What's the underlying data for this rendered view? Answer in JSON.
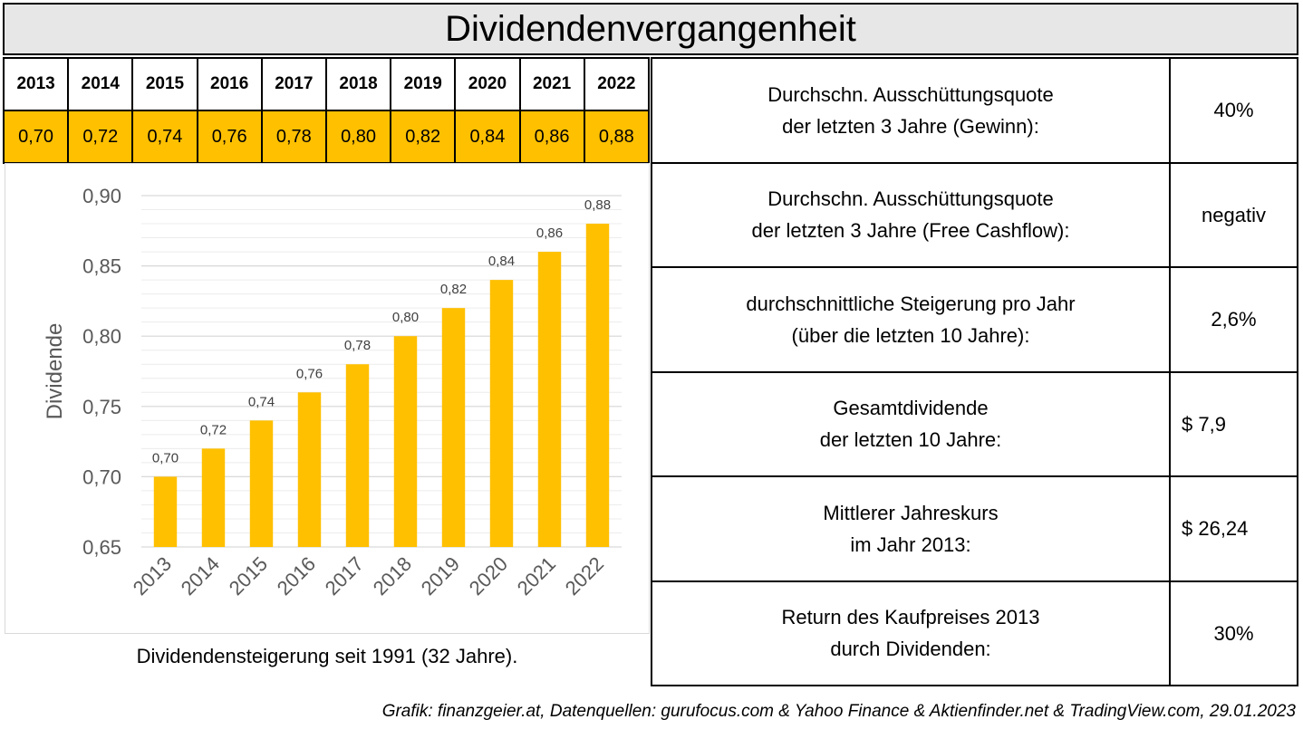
{
  "title": "Dividendenvergangenheit",
  "table": {
    "years": [
      "2013",
      "2014",
      "2015",
      "2016",
      "2017",
      "2018",
      "2019",
      "2020",
      "2021",
      "2022"
    ],
    "values": [
      "0,70",
      "0,72",
      "0,74",
      "0,76",
      "0,78",
      "0,80",
      "0,82",
      "0,84",
      "0,86",
      "0,88"
    ]
  },
  "chart_data": {
    "type": "bar",
    "categories": [
      "2013",
      "2014",
      "2015",
      "2016",
      "2017",
      "2018",
      "2019",
      "2020",
      "2021",
      "2022"
    ],
    "values": [
      0.7,
      0.72,
      0.74,
      0.76,
      0.78,
      0.8,
      0.82,
      0.84,
      0.86,
      0.88
    ],
    "data_labels": [
      "0,70",
      "0,72",
      "0,74",
      "0,76",
      "0,78",
      "0,80",
      "0,82",
      "0,84",
      "0,86",
      "0,88"
    ],
    "ylabel": "Dividende",
    "ylim": [
      0.65,
      0.9
    ],
    "yticks": [
      0.65,
      0.7,
      0.75,
      0.8,
      0.85,
      0.9
    ],
    "ytick_labels": [
      "0,65",
      "0,70",
      "0,75",
      "0,80",
      "0,85",
      "0,90"
    ],
    "grid": true,
    "bar_color": "#ffc000"
  },
  "caption": "Dividendensteigerung seit 1991 (32 Jahre).",
  "metrics": [
    {
      "label_line1": "Durchschn. Ausschüttungsquote",
      "label_line2": "der letzten 3 Jahre (Gewinn):",
      "value": "40%"
    },
    {
      "label_line1": "Durchschn. Ausschüttungsquote",
      "label_line2": "der letzten 3 Jahre (Free Cashflow):",
      "value": "negativ"
    },
    {
      "label_line1": "durchschnittliche Steigerung pro Jahr",
      "label_line2": "(über die letzten 10 Jahre):",
      "value": "2,6%"
    },
    {
      "label_line1": "Gesamtdividende",
      "label_line2": "der letzten 10 Jahre:",
      "value": "$ 7,9"
    },
    {
      "label_line1": "Mittlerer Jahreskurs",
      "label_line2": "im Jahr 2013:",
      "value": "$ 26,24"
    },
    {
      "label_line1": "Return des Kaufpreises 2013",
      "label_line2": "durch Dividenden:",
      "value": "30%"
    }
  ],
  "footer": "Grafik: finanzgeier.at, Datenquellen: gurufocus.com & Yahoo Finance & Aktienfinder.net & TradingView.com, 29.01.2023",
  "colors": {
    "accent": "#ffc000",
    "title_bg": "#e7e7e7",
    "grid": "#d9d9d9",
    "axis_text": "#595959"
  }
}
